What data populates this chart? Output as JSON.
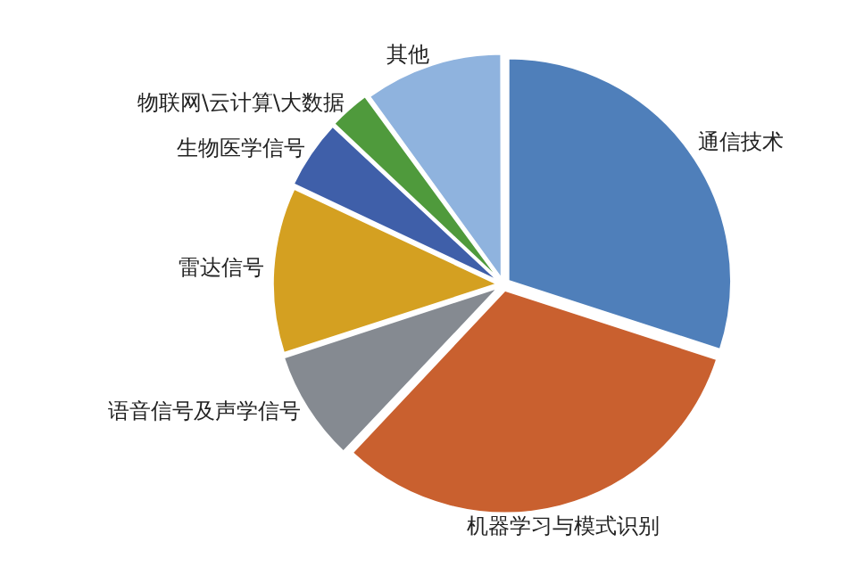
{
  "chart_data": {
    "type": "pie",
    "categories": [
      "通信技术",
      "机器学习与模式识别",
      "语音信号及声学信号",
      "雷达信号",
      "生物医学信号",
      "物联网\\云计算\\大数据",
      "其他"
    ],
    "values": [
      30,
      32,
      8,
      12,
      5,
      3,
      10
    ],
    "colors": [
      "#4f7fba",
      "#c9602f",
      "#858a91",
      "#d4a021",
      "#3f5fa9",
      "#4f9a3c",
      "#8fb3de"
    ],
    "legend": false
  }
}
